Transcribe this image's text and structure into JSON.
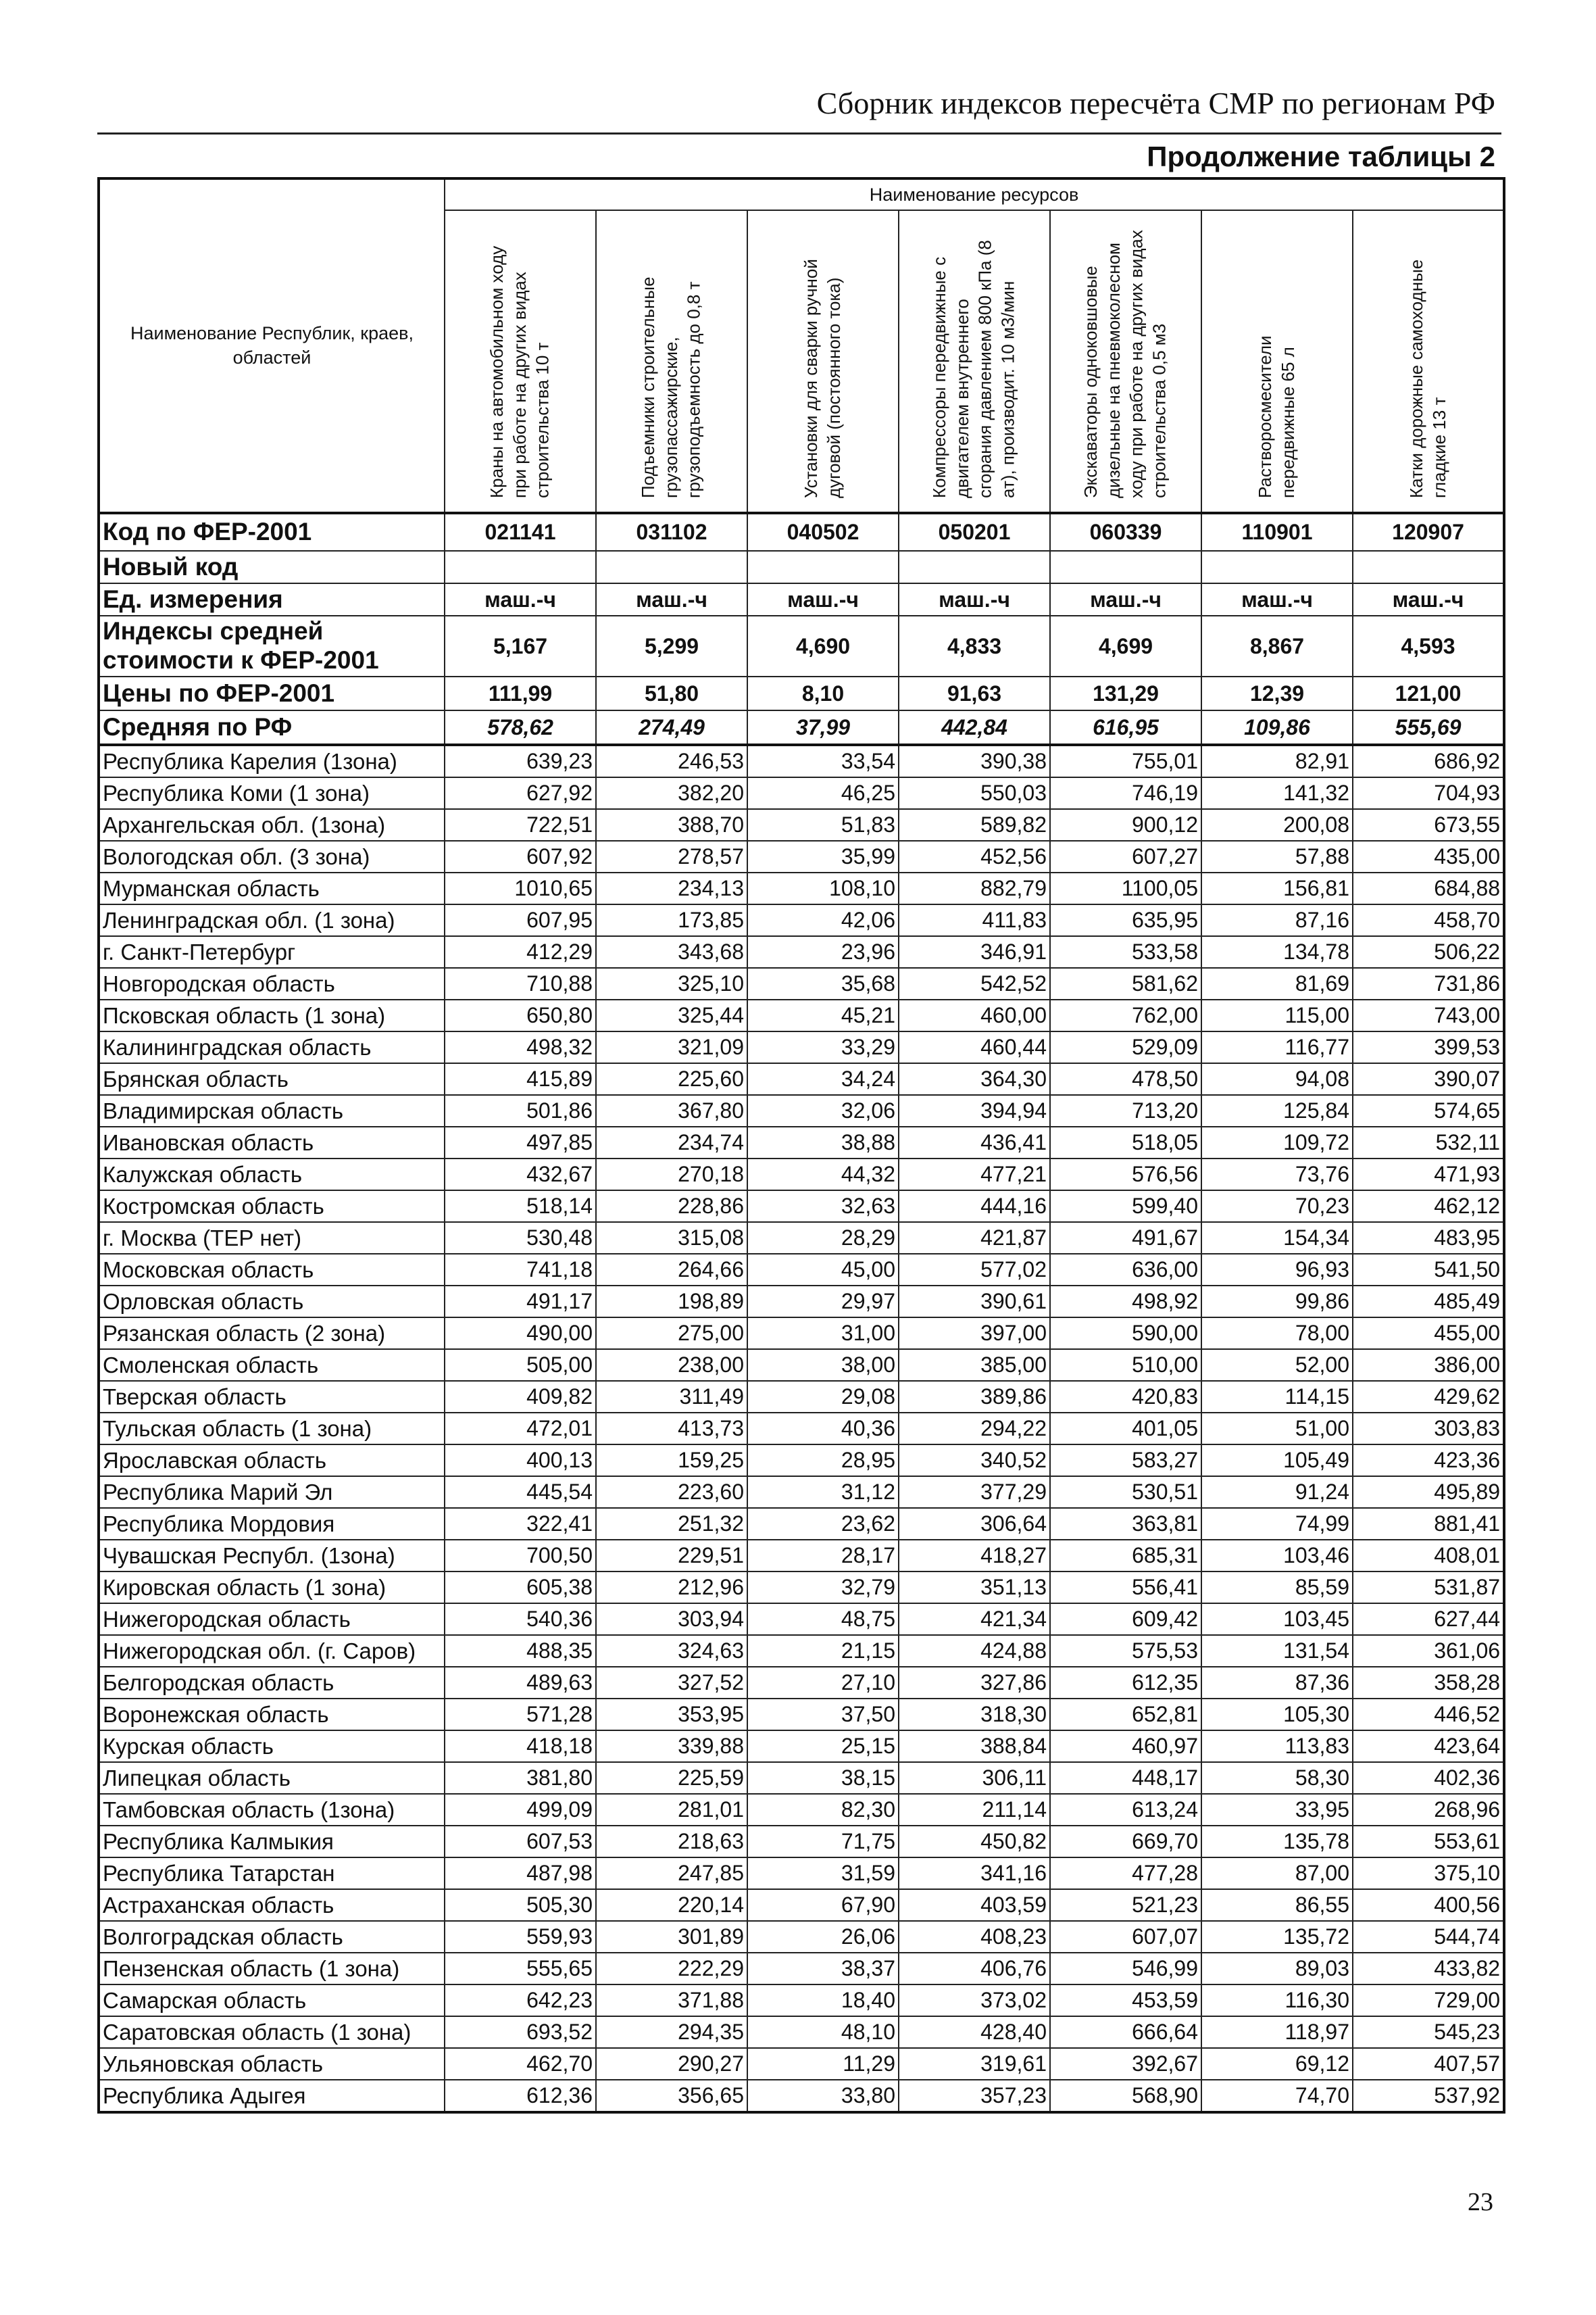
{
  "header": {
    "title": "Сборник индексов пересчёта СМР по регионам РФ",
    "continuation": "Продолжение таблицы 2"
  },
  "table": {
    "region_header": "Наименование Республик, краев, областей",
    "resources_header": "Наименование ресурсов",
    "columns": [
      "Краны на автомобильном ходу при работе на других видах строительства 10 т",
      "Подъемники строительные грузопассажирские, грузоподъемность до 0,8 т",
      "Установки для сварки ручной дуговой (постоянного тока)",
      "Компрессоры передвижные с двигателем внутреннего сгорания давлением 800 кПа (8 ат), производит. 10 м3/мин",
      "Экскаваторы одноковшовые дизельные на пневмоколесном ходу при работе на других видах строительства 0,5 м3",
      "Растворосмесители передвижные 65 л",
      "Катки дорожные самоходные гладкие 13 т"
    ],
    "meta_rows": [
      {
        "label": "Код по ФЕР-2001",
        "values": [
          "021141",
          "031102",
          "040502",
          "050201",
          "060339",
          "110901",
          "120907"
        ]
      },
      {
        "label": "Новый код",
        "values": [
          "",
          "",
          "",
          "",
          "",
          "",
          ""
        ]
      },
      {
        "label": "Ед. измерения",
        "values": [
          "маш.-ч",
          "маш.-ч",
          "маш.-ч",
          "маш.-ч",
          "маш.-ч",
          "маш.-ч",
          "маш.-ч"
        ]
      },
      {
        "label": "Индексы средней стоимости к ФЕР-2001",
        "values": [
          "5,167",
          "5,299",
          "4,690",
          "4,833",
          "4,699",
          "8,867",
          "4,593"
        ]
      },
      {
        "label": "Цены по ФЕР-2001",
        "values": [
          "111,99",
          "51,80",
          "8,10",
          "91,63",
          "131,29",
          "12,39",
          "121,00"
        ]
      },
      {
        "label": "Средняя по РФ",
        "values": [
          "578,62",
          "274,49",
          "37,99",
          "442,84",
          "616,95",
          "109,86",
          "555,69"
        ]
      }
    ],
    "rows": [
      {
        "label": "Республика Карелия (1зона)",
        "values": [
          "639,23",
          "246,53",
          "33,54",
          "390,38",
          "755,01",
          "82,91",
          "686,92"
        ]
      },
      {
        "label": "Республика Коми (1 зона)",
        "values": [
          "627,92",
          "382,20",
          "46,25",
          "550,03",
          "746,19",
          "141,32",
          "704,93"
        ]
      },
      {
        "label": "Архангельская обл. (1зона)",
        "values": [
          "722,51",
          "388,70",
          "51,83",
          "589,82",
          "900,12",
          "200,08",
          "673,55"
        ]
      },
      {
        "label": "Вологодская обл. (3 зона)",
        "values": [
          "607,92",
          "278,57",
          "35,99",
          "452,56",
          "607,27",
          "57,88",
          "435,00"
        ]
      },
      {
        "label": "Мурманская область",
        "values": [
          "1010,65",
          "234,13",
          "108,10",
          "882,79",
          "1100,05",
          "156,81",
          "684,88"
        ]
      },
      {
        "label": "Ленинградская обл. (1 зона)",
        "values": [
          "607,95",
          "173,85",
          "42,06",
          "411,83",
          "635,95",
          "87,16",
          "458,70"
        ]
      },
      {
        "label": "г. Санкт-Петербург",
        "values": [
          "412,29",
          "343,68",
          "23,96",
          "346,91",
          "533,58",
          "134,78",
          "506,22"
        ]
      },
      {
        "label": "Новгородская область",
        "values": [
          "710,88",
          "325,10",
          "35,68",
          "542,52",
          "581,62",
          "81,69",
          "731,86"
        ]
      },
      {
        "label": "Псковская область (1 зона)",
        "values": [
          "650,80",
          "325,44",
          "45,21",
          "460,00",
          "762,00",
          "115,00",
          "743,00"
        ]
      },
      {
        "label": "Калининградская область",
        "values": [
          "498,32",
          "321,09",
          "33,29",
          "460,44",
          "529,09",
          "116,77",
          "399,53"
        ]
      },
      {
        "label": "Брянская область",
        "values": [
          "415,89",
          "225,60",
          "34,24",
          "364,30",
          "478,50",
          "94,08",
          "390,07"
        ]
      },
      {
        "label": "Владимирская область",
        "values": [
          "501,86",
          "367,80",
          "32,06",
          "394,94",
          "713,20",
          "125,84",
          "574,65"
        ]
      },
      {
        "label": "Ивановская область",
        "values": [
          "497,85",
          "234,74",
          "38,88",
          "436,41",
          "518,05",
          "109,72",
          "532,11"
        ]
      },
      {
        "label": "Калужская область",
        "values": [
          "432,67",
          "270,18",
          "44,32",
          "477,21",
          "576,56",
          "73,76",
          "471,93"
        ]
      },
      {
        "label": "Костромская область",
        "values": [
          "518,14",
          "228,86",
          "32,63",
          "444,16",
          "599,40",
          "70,23",
          "462,12"
        ]
      },
      {
        "label": "г. Москва (ТЕР нет)",
        "values": [
          "530,48",
          "315,08",
          "28,29",
          "421,87",
          "491,67",
          "154,34",
          "483,95"
        ]
      },
      {
        "label": "Московская  область",
        "values": [
          "741,18",
          "264,66",
          "45,00",
          "577,02",
          "636,00",
          "96,93",
          "541,50"
        ]
      },
      {
        "label": "Орловская область",
        "values": [
          "491,17",
          "198,89",
          "29,97",
          "390,61",
          "498,92",
          "99,86",
          "485,49"
        ]
      },
      {
        "label": "Рязанская область (2 зона)",
        "values": [
          "490,00",
          "275,00",
          "31,00",
          "397,00",
          "590,00",
          "78,00",
          "455,00"
        ]
      },
      {
        "label": "Смоленская область",
        "values": [
          "505,00",
          "238,00",
          "38,00",
          "385,00",
          "510,00",
          "52,00",
          "386,00"
        ]
      },
      {
        "label": "Тверская область",
        "values": [
          "409,82",
          "311,49",
          "29,08",
          "389,86",
          "420,83",
          "114,15",
          "429,62"
        ]
      },
      {
        "label": "Тульская область (1 зона)",
        "values": [
          "472,01",
          "413,73",
          "40,36",
          "294,22",
          "401,05",
          "51,00",
          "303,83"
        ]
      },
      {
        "label": "Ярославская область",
        "values": [
          "400,13",
          "159,25",
          "28,95",
          "340,52",
          "583,27",
          "105,49",
          "423,36"
        ]
      },
      {
        "label": "Республика Марий Эл",
        "values": [
          "445,54",
          "223,60",
          "31,12",
          "377,29",
          "530,51",
          "91,24",
          "495,89"
        ]
      },
      {
        "label": "Республика Мордовия",
        "values": [
          "322,41",
          "251,32",
          "23,62",
          "306,64",
          "363,81",
          "74,99",
          "881,41"
        ]
      },
      {
        "label": "Чувашская Республ. (1зона)",
        "values": [
          "700,50",
          "229,51",
          "28,17",
          "418,27",
          "685,31",
          "103,46",
          "408,01"
        ]
      },
      {
        "label": "Кировская область (1 зона)",
        "values": [
          "605,38",
          "212,96",
          "32,79",
          "351,13",
          "556,41",
          "85,59",
          "531,87"
        ]
      },
      {
        "label": "Нижегородская область",
        "values": [
          "540,36",
          "303,94",
          "48,75",
          "421,34",
          "609,42",
          "103,45",
          "627,44"
        ]
      },
      {
        "label": "Нижегородская обл. (г. Саров)",
        "values": [
          "488,35",
          "324,63",
          "21,15",
          "424,88",
          "575,53",
          "131,54",
          "361,06"
        ]
      },
      {
        "label": "Белгородская область",
        "values": [
          "489,63",
          "327,52",
          "27,10",
          "327,86",
          "612,35",
          "87,36",
          "358,28"
        ]
      },
      {
        "label": "Воронежская область",
        "values": [
          "571,28",
          "353,95",
          "37,50",
          "318,30",
          "652,81",
          "105,30",
          "446,52"
        ]
      },
      {
        "label": "Курская область",
        "values": [
          "418,18",
          "339,88",
          "25,15",
          "388,84",
          "460,97",
          "113,83",
          "423,64"
        ]
      },
      {
        "label": "Липецкая область",
        "values": [
          "381,80",
          "225,59",
          "38,15",
          "306,11",
          "448,17",
          "58,30",
          "402,36"
        ]
      },
      {
        "label": "Тамбовская область (1зона)",
        "values": [
          "499,09",
          "281,01",
          "82,30",
          "211,14",
          "613,24",
          "33,95",
          "268,96"
        ]
      },
      {
        "label": "Республика Калмыкия",
        "values": [
          "607,53",
          "218,63",
          "71,75",
          "450,82",
          "669,70",
          "135,78",
          "553,61"
        ]
      },
      {
        "label": "Республика Татарстан",
        "values": [
          "487,98",
          "247,85",
          "31,59",
          "341,16",
          "477,28",
          "87,00",
          "375,10"
        ]
      },
      {
        "label": "Астраханская область",
        "values": [
          "505,30",
          "220,14",
          "67,90",
          "403,59",
          "521,23",
          "86,55",
          "400,56"
        ]
      },
      {
        "label": "Волгоградская область",
        "values": [
          "559,93",
          "301,89",
          "26,06",
          "408,23",
          "607,07",
          "135,72",
          "544,74"
        ]
      },
      {
        "label": "Пензенская область (1 зона)",
        "values": [
          "555,65",
          "222,29",
          "38,37",
          "406,76",
          "546,99",
          "89,03",
          "433,82"
        ]
      },
      {
        "label": "Самарская область",
        "values": [
          "642,23",
          "371,88",
          "18,40",
          "373,02",
          "453,59",
          "116,30",
          "729,00"
        ]
      },
      {
        "label": "Саратовская область (1 зона)",
        "values": [
          "693,52",
          "294,35",
          "48,10",
          "428,40",
          "666,64",
          "118,97",
          "545,23"
        ]
      },
      {
        "label": "Ульяновская область",
        "values": [
          "462,70",
          "290,27",
          "11,29",
          "319,61",
          "392,67",
          "69,12",
          "407,57"
        ]
      },
      {
        "label": "Республика Адыгея",
        "values": [
          "612,36",
          "356,65",
          "33,80",
          "357,23",
          "568,90",
          "74,70",
          "537,92"
        ]
      }
    ]
  },
  "footer": {
    "page_number": "23"
  }
}
